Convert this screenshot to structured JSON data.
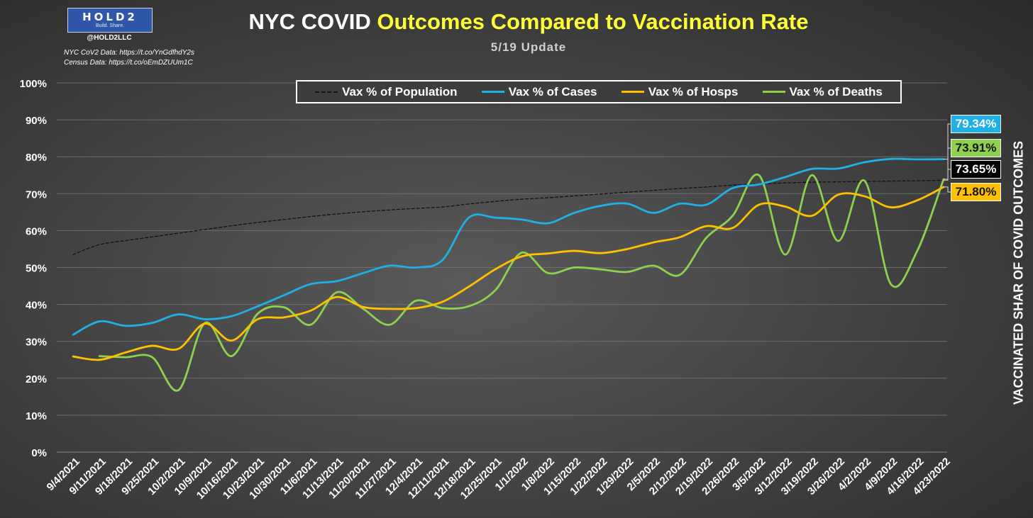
{
  "header": {
    "title_white": "NYC COVID ",
    "title_yellow": "Outcomes Compared to Vaccination Rate",
    "subtitle": "5/19 Update"
  },
  "branding": {
    "logo_text": "HOLD2",
    "logo_tagline": "Build. Share.",
    "handle": "@HOLD2LLC",
    "source_nyc": "NYC CoV2 Data: https://t.co/YnGdfhdY2s",
    "source_census": "Census Data: https://t.co/oEmDZUUm1C"
  },
  "end_labels": {
    "cases": "79.34%",
    "deaths": "73.91%",
    "population": "73.65%",
    "hosps": "71.80%"
  },
  "colors": {
    "population": "#111111",
    "cases": "#1fb0e8",
    "hosps": "#ffc000",
    "deaths": "#8fd14f",
    "grid": "#6e6e6e",
    "text": "#ffffff"
  },
  "chart_data": {
    "type": "line",
    "title": "NYC COVID Outcomes Compared to Vaccination Rate",
    "ylabel": "VACCINATED SHAR OF COVID OUTCOMES",
    "ylim": [
      0,
      100
    ],
    "yticks": [
      "0%",
      "10%",
      "20%",
      "30%",
      "40%",
      "50%",
      "60%",
      "70%",
      "80%",
      "90%",
      "100%"
    ],
    "legend_position": "top-center",
    "grid": true,
    "categories": [
      "9/4/2021",
      "9/11/2021",
      "9/18/2021",
      "9/25/2021",
      "10/2/2021",
      "10/9/2021",
      "10/16/2021",
      "10/23/2021",
      "10/30/2021",
      "11/6/2021",
      "11/13/2021",
      "11/20/2021",
      "11/27/2021",
      "12/4/2021",
      "12/11/2021",
      "12/18/2021",
      "12/25/2021",
      "1/1/2022",
      "1/8/2022",
      "1/15/2022",
      "1/22/2022",
      "1/29/2022",
      "2/5/2022",
      "2/12/2022",
      "2/19/2022",
      "2/26/2022",
      "3/5/2022",
      "3/12/2022",
      "3/19/2022",
      "3/26/2022",
      "4/2/2022",
      "4/9/2022",
      "4/16/2022",
      "4/23/2022"
    ],
    "series": [
      {
        "name": "Vax % of Population",
        "key": "population",
        "dashed": true,
        "values": [
          53.5,
          56.2,
          57.3,
          58.3,
          59.3,
          60.3,
          61.3,
          62.2,
          63.0,
          63.8,
          64.5,
          65.1,
          65.6,
          66.0,
          66.4,
          67.2,
          67.9,
          68.5,
          68.9,
          69.4,
          69.9,
          70.4,
          70.9,
          71.4,
          71.8,
          72.3,
          72.6,
          72.9,
          73.1,
          73.2,
          73.3,
          73.4,
          73.5,
          73.65
        ]
      },
      {
        "name": "Vax % of Cases",
        "key": "cases",
        "values": [
          31.8,
          35.4,
          34.2,
          35.0,
          37.3,
          36.0,
          36.8,
          39.5,
          42.5,
          45.5,
          46.3,
          48.5,
          50.5,
          50.0,
          52.0,
          63.5,
          63.5,
          63.0,
          62.0,
          64.8,
          66.7,
          67.3,
          64.8,
          67.3,
          67.0,
          71.5,
          72.5,
          74.5,
          76.7,
          76.8,
          78.5,
          79.4,
          79.3,
          79.34
        ]
      },
      {
        "name": "Vax % of Hosps",
        "key": "hosps",
        "values": [
          25.9,
          25.0,
          27.0,
          28.8,
          28.0,
          34.8,
          30.2,
          36.0,
          36.5,
          38.3,
          42.0,
          39.3,
          38.8,
          39.0,
          40.7,
          44.8,
          49.5,
          53.0,
          53.8,
          54.5,
          53.9,
          55.0,
          56.8,
          58.2,
          61.2,
          60.7,
          67.0,
          66.5,
          64.0,
          69.7,
          69.3,
          66.3,
          68.2,
          71.8
        ]
      },
      {
        "name": "Vax % of Deaths",
        "key": "deaths",
        "values": [
          null,
          26.0,
          25.7,
          25.7,
          16.8,
          35.0,
          26.0,
          37.5,
          39.2,
          34.5,
          43.3,
          38.8,
          34.5,
          41.0,
          39.0,
          39.5,
          43.8,
          54.0,
          48.5,
          50.0,
          49.5,
          48.8,
          50.5,
          48.0,
          58.0,
          64.0,
          75.0,
          53.5,
          75.0,
          57.2,
          73.5,
          45.5,
          54.5,
          73.91
        ]
      }
    ]
  }
}
